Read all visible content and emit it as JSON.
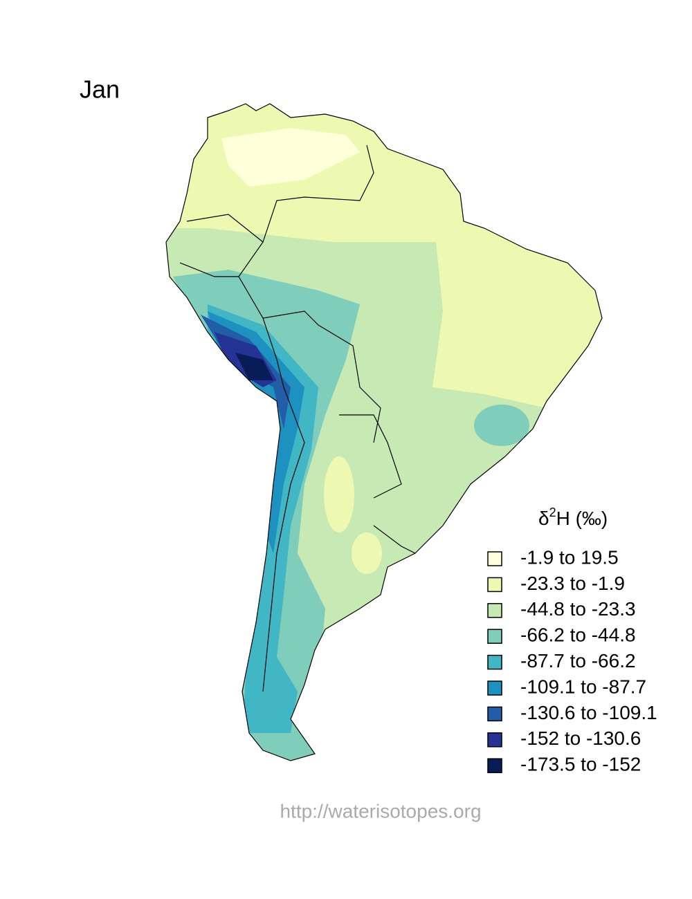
{
  "title": "Jan",
  "legend": {
    "title": {
      "symbol": "δ",
      "superscript": "2",
      "rest": "H (‰)"
    },
    "items": [
      {
        "label": "-1.9 to 19.5",
        "color": "#ffffd9"
      },
      {
        "label": "-23.3 to -1.9",
        "color": "#edf8b1"
      },
      {
        "label": "-44.8 to -23.3",
        "color": "#c7e9b4"
      },
      {
        "label": "-66.2 to -44.8",
        "color": "#7fcdbb"
      },
      {
        "label": "-87.7 to -66.2",
        "color": "#41b6c4"
      },
      {
        "label": "-109.1 to -87.7",
        "color": "#1d91c0"
      },
      {
        "label": "-130.6 to -109.1",
        "color": "#225ea8"
      },
      {
        "label": "-152 to -130.6",
        "color": "#253494"
      },
      {
        "label": "-173.5 to -152",
        "color": "#081d58"
      }
    ]
  },
  "footer": "http://waterisotopes.org"
}
